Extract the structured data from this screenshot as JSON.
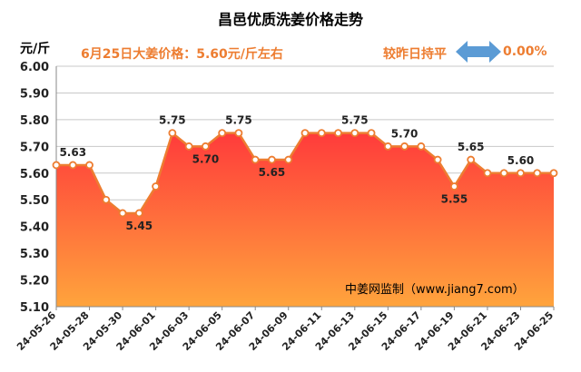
{
  "title": "昌邑优质洗姜价格走势",
  "unit": "元/斤",
  "price_note": "6月25日大姜价格：5.60元/斤左右",
  "compare_label": "较昨日持平",
  "compare_value": "0.00%",
  "watermark": "中姜网监制（www.jiang7.com）",
  "colors": {
    "line": "#ed7d31",
    "fill_top": "#ff3b3b",
    "fill_bottom": "#ffa43c",
    "arrow": "#5b9bd5",
    "grid": "#c8c8c8"
  },
  "chart_data": {
    "type": "area",
    "title": "昌邑优质洗姜价格走势",
    "ylabel": "元/斤",
    "ylim": [
      5.1,
      6.0
    ],
    "yticks": [
      "6.00",
      "5.90",
      "5.80",
      "5.70",
      "5.60",
      "5.50",
      "5.40",
      "5.30",
      "5.20",
      "5.10"
    ],
    "xticks": [
      "24-05-26",
      "24-05-28",
      "24-05-30",
      "24-06-01",
      "24-06-03",
      "24-06-05",
      "24-06-07",
      "24-06-09",
      "24-06-11",
      "24-06-13",
      "24-06-15",
      "24-06-17",
      "24-06-19",
      "24-06-21",
      "24-06-23",
      "24-06-25"
    ],
    "x": [
      "24-05-26",
      "24-05-27",
      "24-05-28",
      "24-05-29",
      "24-05-30",
      "24-05-31",
      "24-06-01",
      "24-06-02",
      "24-06-03",
      "24-06-04",
      "24-06-05",
      "24-06-06",
      "24-06-07",
      "24-06-08",
      "24-06-09",
      "24-06-10",
      "24-06-11",
      "24-06-12",
      "24-06-13",
      "24-06-14",
      "24-06-15",
      "24-06-16",
      "24-06-17",
      "24-06-18",
      "24-06-19",
      "24-06-20",
      "24-06-21",
      "24-06-22",
      "24-06-23",
      "24-06-24",
      "24-06-25"
    ],
    "values": [
      5.63,
      5.63,
      5.63,
      5.5,
      5.45,
      5.45,
      5.55,
      5.75,
      5.7,
      5.7,
      5.75,
      5.75,
      5.65,
      5.65,
      5.65,
      5.75,
      5.75,
      5.75,
      5.75,
      5.75,
      5.7,
      5.7,
      5.7,
      5.65,
      5.55,
      5.65,
      5.6,
      5.6,
      5.6,
      5.6,
      5.6
    ],
    "data_labels": [
      {
        "index": 1,
        "text": "5.63",
        "pos": "above"
      },
      {
        "index": 5,
        "text": "5.45",
        "pos": "below"
      },
      {
        "index": 7,
        "text": "5.75",
        "pos": "above"
      },
      {
        "index": 9,
        "text": "5.70",
        "pos": "below"
      },
      {
        "index": 11,
        "text": "5.75",
        "pos": "above"
      },
      {
        "index": 13,
        "text": "5.65",
        "pos": "below"
      },
      {
        "index": 18,
        "text": "5.75",
        "pos": "above"
      },
      {
        "index": 21,
        "text": "5.70",
        "pos": "above"
      },
      {
        "index": 24,
        "text": "5.55",
        "pos": "below"
      },
      {
        "index": 25,
        "text": "5.65",
        "pos": "above"
      },
      {
        "index": 28,
        "text": "5.60",
        "pos": "above"
      }
    ],
    "grid": true,
    "legend": "none"
  }
}
